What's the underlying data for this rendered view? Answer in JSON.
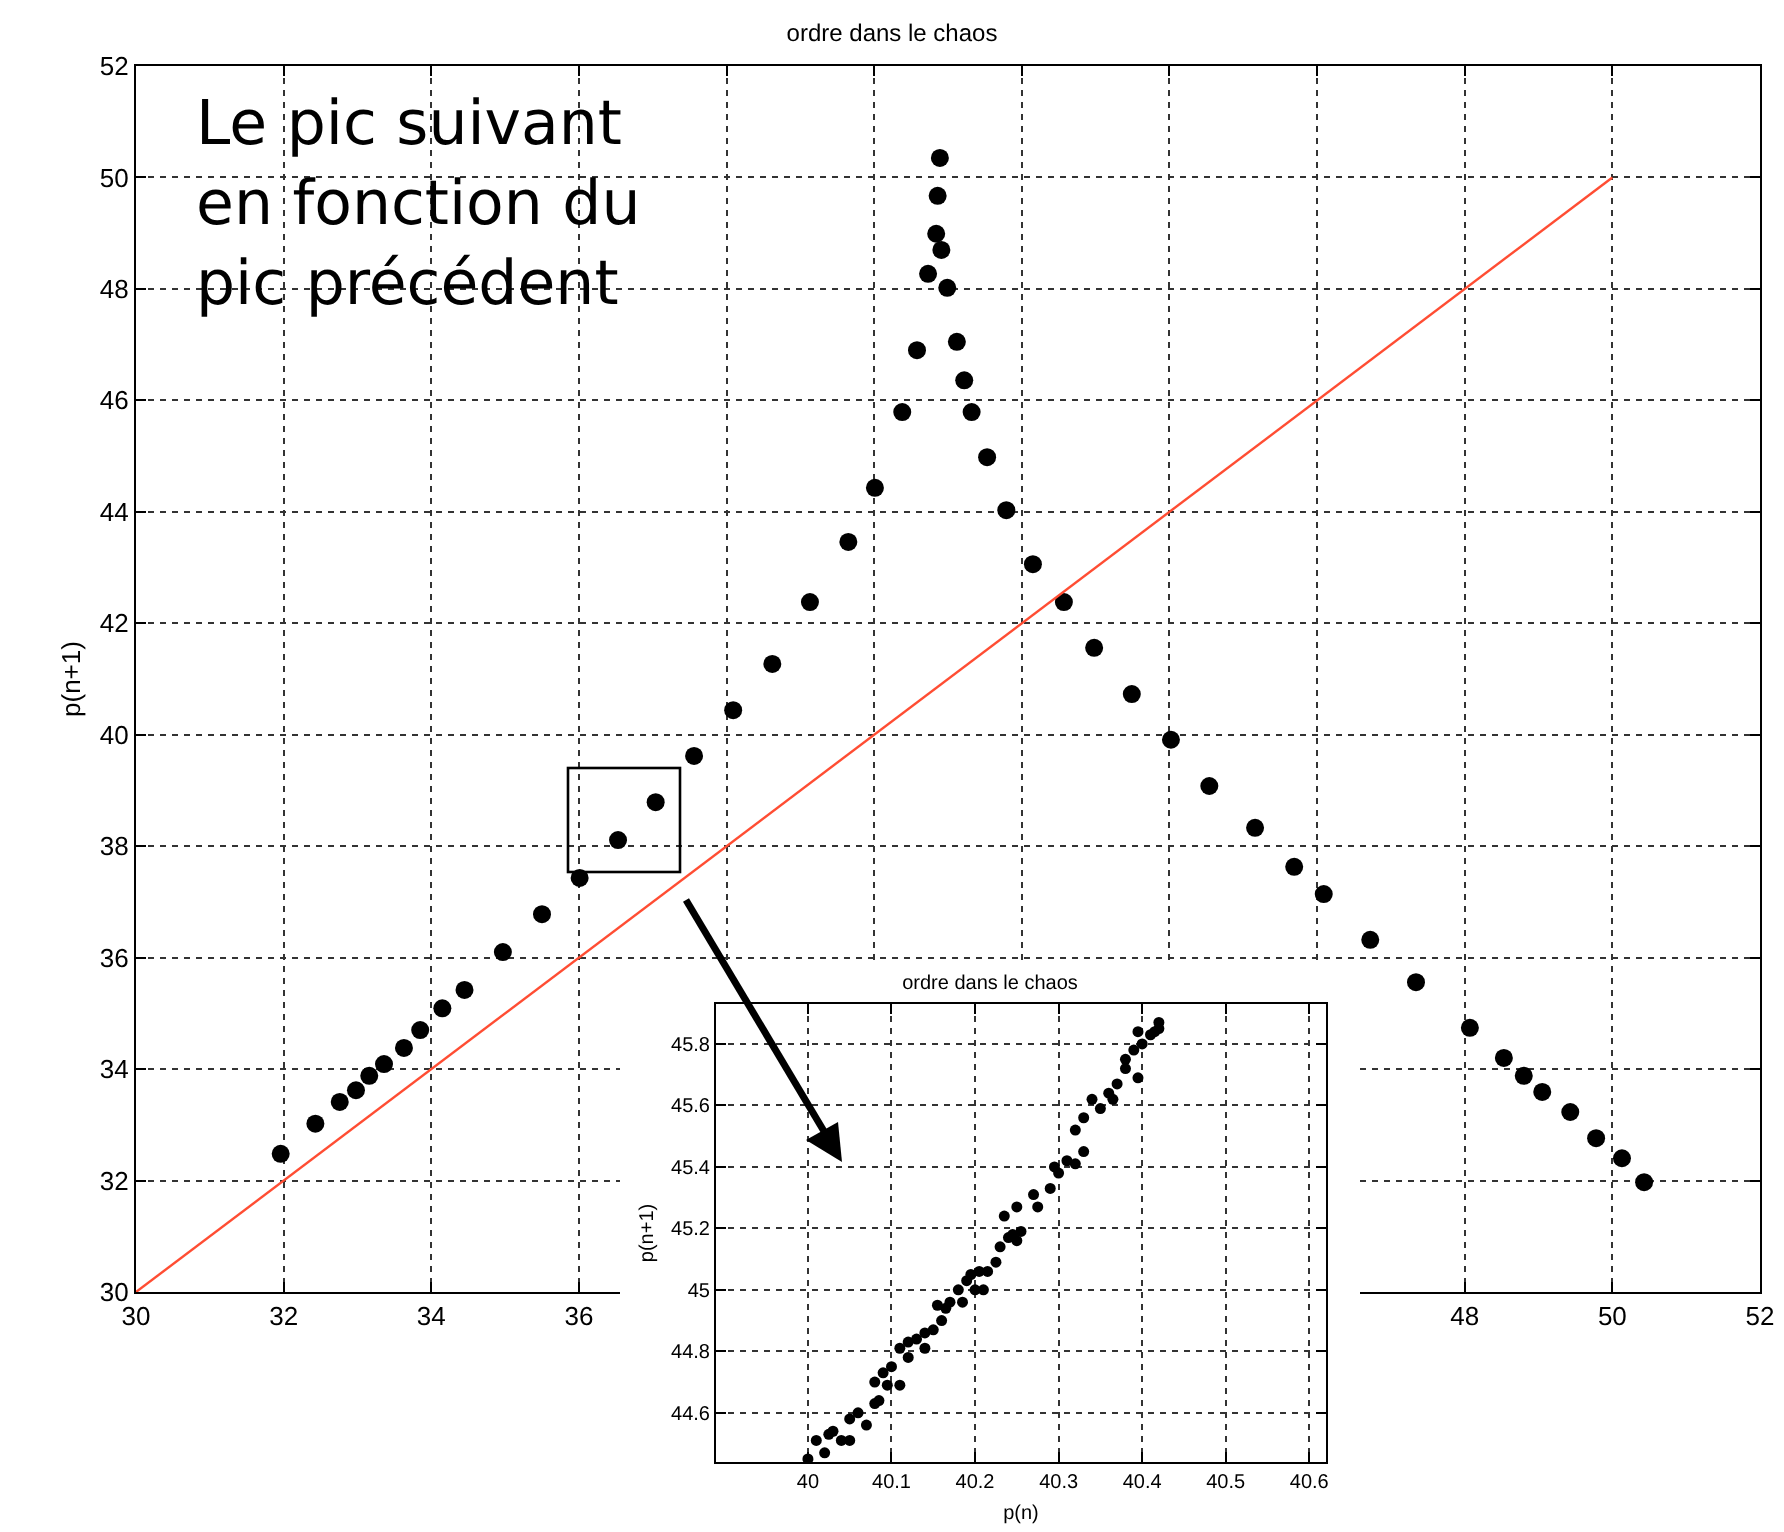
{
  "chart_data": [
    {
      "type": "scatter",
      "title": "ordre dans le chaos",
      "ylabel": "p(n+1)",
      "annotations": [
        "Le pic suivant\nen fonction du\npic précédent"
      ],
      "xlim": [
        30,
        52
      ],
      "ylim": [
        30,
        52
      ],
      "xticks": [
        30,
        32,
        34,
        36,
        {
          "value": 38,
          "label": null
        },
        {
          "value": 40,
          "label": null
        },
        {
          "value": 42,
          "label": null
        },
        {
          "value": 44,
          "label": null
        },
        {
          "value": 46,
          "label": null
        },
        48,
        50,
        52
      ],
      "yticks": [
        30,
        32,
        34,
        36,
        38,
        40,
        42,
        44,
        46,
        48,
        50,
        52
      ],
      "grid": true,
      "series": [
        {
          "marker": "circle",
          "color": "#000000",
          "x": [
            31.96,
            32.43,
            32.76,
            32.98,
            33.16,
            33.36,
            33.63,
            33.85,
            34.15,
            34.45,
            34.97,
            35.5,
            36.01,
            36.53,
            37.04,
            37.56,
            38.09,
            38.62,
            39.13,
            39.65,
            40.01,
            40.38,
            40.58,
            40.73,
            40.84,
            40.89,
            40.86,
            40.91,
            40.99,
            41.12,
            41.22,
            41.32,
            41.53,
            41.79,
            42.15,
            42.57,
            42.98,
            43.49,
            44.02,
            44.54,
            45.16,
            45.69,
            46.09,
            46.72,
            47.34,
            48.07,
            48.53,
            48.8,
            49.05,
            49.43,
            49.78,
            50.13,
            50.43
          ],
          "values": [
            32.48,
            33.02,
            33.41,
            33.62,
            33.88,
            34.09,
            34.38,
            34.7,
            35.09,
            35.42,
            36.1,
            36.78,
            37.43,
            38.11,
            38.79,
            39.62,
            40.44,
            41.27,
            42.38,
            43.46,
            44.43,
            45.79,
            46.9,
            48.27,
            48.99,
            50.35,
            49.67,
            48.7,
            48.02,
            47.05,
            46.36,
            45.79,
            44.98,
            44.03,
            43.06,
            42.38,
            41.56,
            40.73,
            39.91,
            39.08,
            38.33,
            37.63,
            37.14,
            36.32,
            35.56,
            34.74,
            34.2,
            33.88,
            33.59,
            33.23,
            32.76,
            32.4,
            31.97
          ]
        },
        {
          "type": "line",
          "color": "#ff4d33",
          "line_style": "solid",
          "x": [
            30,
            50
          ],
          "values": [
            30,
            50
          ]
        }
      ]
    },
    {
      "type": "scatter",
      "title": "ordre dans le chaos",
      "xlabel": "p(n)",
      "ylabel": "p(n+1)",
      "xlim": [
        39.89,
        40.62
      ],
      "ylim": [
        44.44,
        45.93
      ],
      "xticks": [
        40,
        40.1,
        40.2,
        40.3,
        40.4,
        40.5,
        40.6
      ],
      "yticks": [
        44.6,
        44.8,
        45,
        45.2,
        45.4,
        45.6,
        45.8
      ],
      "grid": true,
      "marker": "circle",
      "series": [
        {
          "color": "#000000",
          "x": [
            40.0,
            40.01,
            40.02,
            40.025,
            40.03,
            40.04,
            40.05,
            40.05,
            40.06,
            40.07,
            40.08,
            40.085,
            40.08,
            40.09,
            40.095,
            40.1,
            40.11,
            40.11,
            40.12,
            40.12,
            40.13,
            40.14,
            40.14,
            40.15,
            40.155,
            40.16,
            40.165,
            40.17,
            40.18,
            40.185,
            40.19,
            40.195,
            40.2,
            40.205,
            40.21,
            40.215,
            40.225,
            40.23,
            40.24,
            40.245,
            40.25,
            40.255,
            40.235,
            40.25,
            40.27,
            40.275,
            40.29,
            40.295,
            40.3,
            40.31,
            40.32,
            40.33,
            40.32,
            40.33,
            40.34,
            40.35,
            40.365,
            40.36,
            40.37,
            40.38,
            40.395,
            40.38,
            40.39,
            40.395,
            40.4,
            40.41,
            40.415,
            40.42,
            40.42
          ],
          "values": [
            44.45,
            44.51,
            44.47,
            44.53,
            44.54,
            44.51,
            44.51,
            44.58,
            44.6,
            44.56,
            44.63,
            44.64,
            44.7,
            44.73,
            44.69,
            44.75,
            44.69,
            44.81,
            44.78,
            44.83,
            44.84,
            44.81,
            44.86,
            44.87,
            44.95,
            44.9,
            44.94,
            44.96,
            45.0,
            44.96,
            45.03,
            45.05,
            45.0,
            45.06,
            45.0,
            45.06,
            45.09,
            45.14,
            45.17,
            45.18,
            45.16,
            45.19,
            45.24,
            45.27,
            45.31,
            45.27,
            45.33,
            45.4,
            45.38,
            45.42,
            45.41,
            45.45,
            45.52,
            45.56,
            45.62,
            45.59,
            45.62,
            45.64,
            45.67,
            45.72,
            45.69,
            45.75,
            45.78,
            45.84,
            45.8,
            45.83,
            45.84,
            45.85,
            45.87
          ]
        }
      ]
    }
  ]
}
